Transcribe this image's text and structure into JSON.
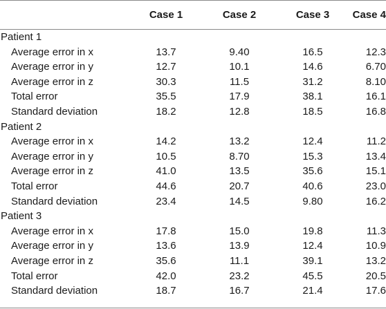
{
  "header": [
    "",
    "Case 1",
    "Case 2",
    "Case 3",
    "Case 4"
  ],
  "groups": [
    {
      "name": "Patient 1",
      "rows": [
        {
          "label": "Average error in x",
          "values": [
            "13.7",
            "9.40",
            "16.5",
            "12.3"
          ]
        },
        {
          "label": "Average error in y",
          "values": [
            "12.7",
            "10.1",
            "14.6",
            "6.70"
          ]
        },
        {
          "label": "Average error in z",
          "values": [
            "30.3",
            "11.5",
            "31.2",
            "8.10"
          ]
        },
        {
          "label": "Total error",
          "values": [
            "35.5",
            "17.9",
            "38.1",
            "16.1"
          ]
        },
        {
          "label": "Standard deviation",
          "values": [
            "18.2",
            "12.8",
            "18.5",
            "16.8"
          ]
        }
      ]
    },
    {
      "name": "Patient 2",
      "rows": [
        {
          "label": "Average error in x",
          "values": [
            "14.2",
            "13.2",
            "12.4",
            "11.2"
          ]
        },
        {
          "label": "Average error in y",
          "values": [
            "10.5",
            "8.70",
            "15.3",
            "13.4"
          ]
        },
        {
          "label": "Average error in z",
          "values": [
            "41.0",
            "13.5",
            "35.6",
            "15.1"
          ]
        },
        {
          "label": "Total error",
          "values": [
            "44.6",
            "20.7",
            "40.6",
            "23.0"
          ]
        },
        {
          "label": "Standard deviation",
          "values": [
            "23.4",
            "14.5",
            "9.80",
            "16.2"
          ]
        }
      ]
    },
    {
      "name": "Patient 3",
      "rows": [
        {
          "label": "Average error in x",
          "values": [
            "17.8",
            "15.0",
            "19.8",
            "11.3"
          ]
        },
        {
          "label": "Average error in y",
          "values": [
            "13.6",
            "13.9",
            "12.4",
            "10.9"
          ]
        },
        {
          "label": "Average error in z",
          "values": [
            "35.6",
            "11.1",
            "39.1",
            "13.2"
          ]
        },
        {
          "label": "Total error",
          "values": [
            "42.0",
            "23.2",
            "45.5",
            "20.5"
          ]
        },
        {
          "label": "Standard deviation",
          "values": [
            "18.7",
            "16.7",
            "21.4",
            "17.6"
          ]
        }
      ]
    }
  ]
}
